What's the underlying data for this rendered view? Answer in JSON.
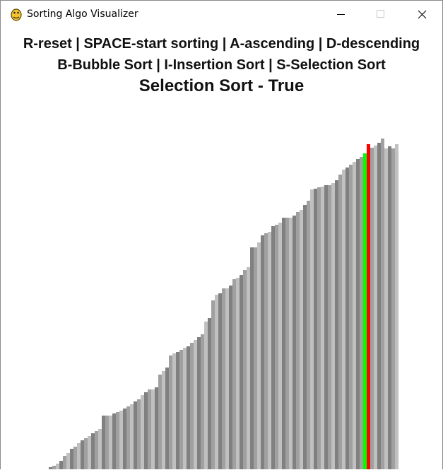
{
  "window": {
    "title": "Sorting Algo Visualizer"
  },
  "instructions": [
    "R-reset | SPACE-start sorting | A-ascending | D-descending",
    "B-Bubble Sort | I-Insertion Sort | S-Selection Sort"
  ],
  "status": "Selection Sort - True",
  "bars": {
    "values": [
      4,
      6,
      9,
      13,
      20,
      24,
      30,
      33,
      38,
      42,
      45,
      48,
      52,
      55,
      58,
      77,
      77,
      77,
      80,
      82,
      84,
      87,
      90,
      93,
      97,
      100,
      106,
      110,
      114,
      114,
      117,
      135,
      140,
      145,
      162,
      165,
      167,
      170,
      173,
      175,
      180,
      184,
      188,
      192,
      210,
      215,
      240,
      248,
      250,
      257,
      257,
      261,
      270,
      272,
      276,
      283,
      287,
      315,
      315,
      322,
      332,
      335,
      337,
      345,
      347,
      350,
      357,
      357,
      357,
      360,
      365,
      368,
      375,
      381,
      397,
      398,
      400,
      401,
      403,
      403,
      406,
      410,
      418,
      425,
      428,
      432,
      436,
      440,
      443,
      448,
      461,
      456,
      459,
      463,
      469,
      455,
      458,
      455,
      461
    ],
    "colors": [
      "#808080",
      "#a0a0a0",
      "#c0c0c0"
    ],
    "highlights": [
      {
        "index": 89,
        "color": "#00ff00"
      },
      {
        "index": 90,
        "color": "#ff0000"
      }
    ]
  }
}
